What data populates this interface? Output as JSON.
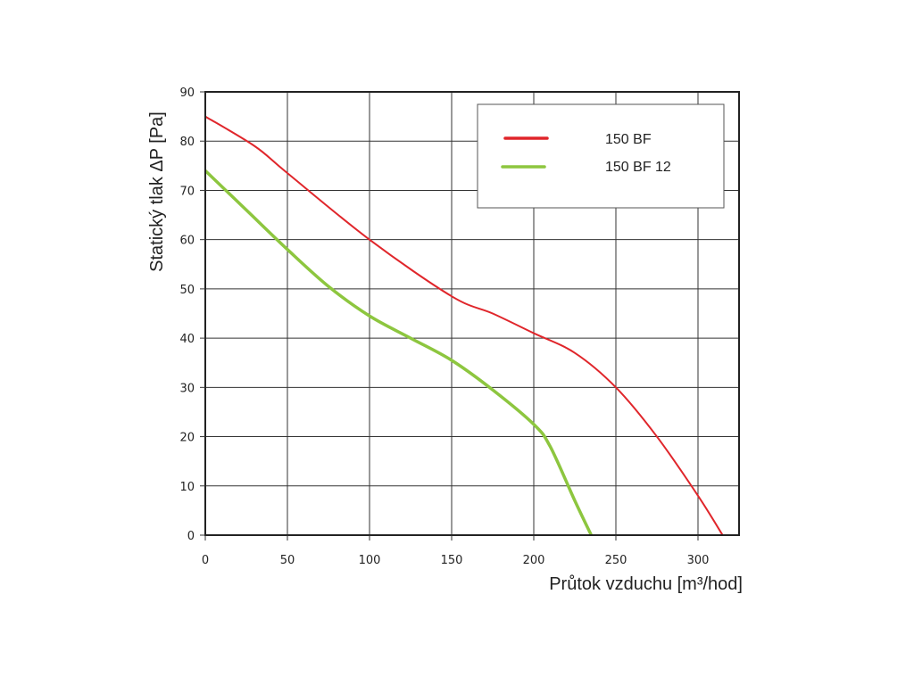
{
  "chart_data": {
    "type": "line",
    "title": "",
    "xlabel": "Průtok vzduchu [m³/hod]",
    "ylabel": "Statický tlak  ΔP [Pa]",
    "xlim": [
      0,
      325
    ],
    "ylim": [
      0,
      90
    ],
    "xticks": [
      0,
      50,
      100,
      150,
      200,
      250,
      300
    ],
    "yticks": [
      0,
      10,
      20,
      30,
      40,
      50,
      60,
      70,
      80,
      90
    ],
    "grid": true,
    "legend_position": "top-right",
    "series": [
      {
        "name": "150 BF",
        "color": "#e0262b",
        "x": [
          0,
          30,
          50,
          100,
          150,
          175,
          200,
          225,
          250,
          275,
          300,
          315
        ],
        "y": [
          85,
          79,
          73.5,
          60,
          48.5,
          45,
          41,
          37,
          30,
          20,
          8,
          0
        ]
      },
      {
        "name": "150 BF 12",
        "color": "#8dc63f",
        "x": [
          0,
          25,
          50,
          75,
          100,
          125,
          150,
          175,
          200,
          210,
          225,
          235
        ],
        "y": [
          74,
          66,
          58,
          50.5,
          44.5,
          40,
          35.5,
          29.5,
          22.5,
          18,
          7,
          0
        ]
      }
    ]
  }
}
